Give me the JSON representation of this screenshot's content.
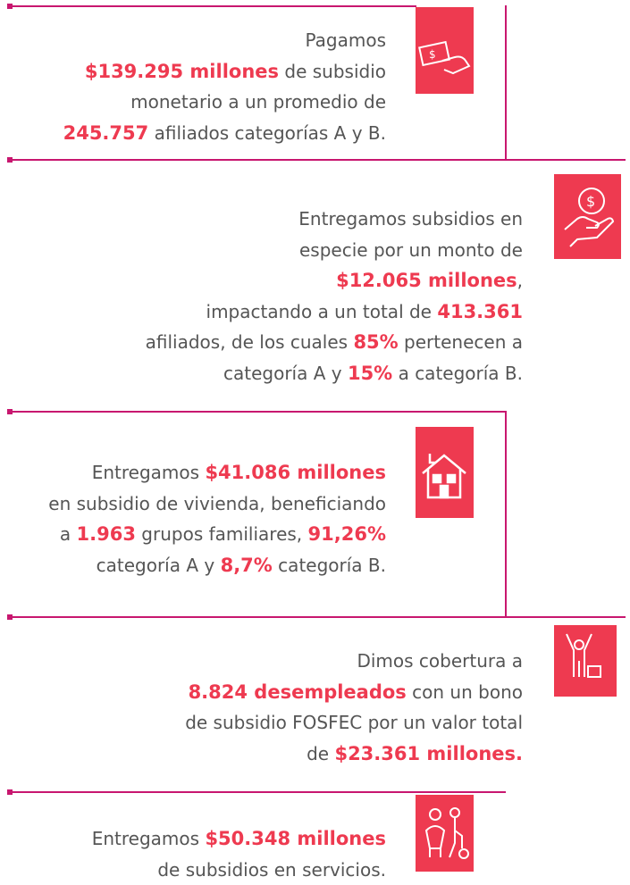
{
  "blocks": [
    {
      "lines": [
        [
          "Pagamos"
        ],
        [
          {
            "text": "$139.295 millones",
            "emphasis": true
          },
          " de subsidio"
        ],
        [
          "monetario a un promedio de"
        ],
        [
          {
            "text": "245.757",
            "emphasis": true
          },
          " afiliados categorías A y B."
        ]
      ]
    },
    {
      "lines": [
        [
          "Entregamos subsidios en"
        ],
        [
          "especie por un monto de"
        ],
        [
          {
            "text": "$12.065 millones",
            "emphasis": true
          },
          ","
        ],
        [
          "impactando a un total de ",
          {
            "text": "413.361",
            "emphasis": true
          }
        ],
        [
          "afiliados, de los cuales ",
          {
            "text": "85%",
            "emphasis": true
          },
          " pertenecen a"
        ],
        [
          "categoría A y ",
          {
            "text": "15%",
            "emphasis": true
          },
          " a categoría B."
        ]
      ]
    },
    {
      "lines": [
        [
          "Entregamos ",
          {
            "text": "$41.086 millones",
            "emphasis": true
          }
        ],
        [
          "en subsidio de vivienda, beneficiando"
        ],
        [
          "a ",
          {
            "text": "1.963",
            "emphasis": true
          },
          " grupos familiares, ",
          {
            "text": "91,26%",
            "emphasis": true
          }
        ],
        [
          "categoría A y ",
          {
            "text": "8,7%",
            "emphasis": true
          },
          " categoría B."
        ]
      ]
    },
    {
      "lines": [
        [
          "Dimos cobertura a"
        ],
        [
          {
            "text": "8.824 desempleados",
            "emphasis": true
          },
          " con un bono"
        ],
        [
          "de subsidio FOSFEC por un valor total"
        ],
        [
          "de ",
          {
            "text": "$23.361 millones.",
            "emphasis": true
          }
        ]
      ]
    },
    {
      "lines": [
        [
          "Entregamos ",
          {
            "text": "$50.348 millones",
            "emphasis": true
          }
        ],
        [
          "de subsidios en servicios."
        ]
      ]
    }
  ]
}
